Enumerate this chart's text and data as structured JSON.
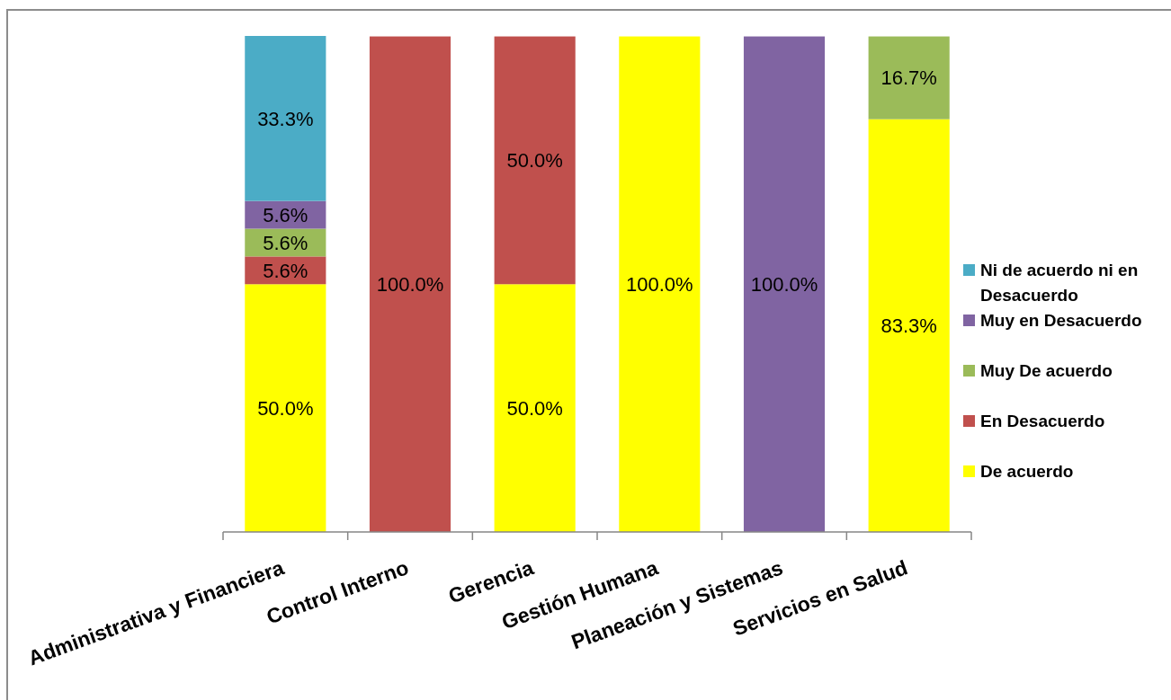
{
  "chart_data": {
    "type": "bar",
    "stacked": true,
    "categories": [
      "Administrativa y Financiera",
      "Control Interno",
      "Gerencia",
      "Gestión Humana",
      "Planeación y Sistemas",
      "Servicios en Salud"
    ],
    "series": [
      {
        "name": "De acuerdo",
        "color": "#ffff00",
        "values": [
          50,
          null,
          50,
          100,
          null,
          83.3
        ],
        "value_labels": [
          "50.0%",
          null,
          "50.0%",
          "100.0%",
          null,
          "83.3%"
        ]
      },
      {
        "name": "En Desacuerdo",
        "color": "#c0504d",
        "values": [
          5.6,
          100,
          50,
          null,
          null,
          null
        ],
        "value_labels": [
          "5.6%",
          "100.0%",
          "50.0%",
          null,
          null,
          null
        ]
      },
      {
        "name": "Muy De acuerdo",
        "color": "#9bbb59",
        "values": [
          5.6,
          null,
          null,
          null,
          null,
          16.7
        ],
        "value_labels": [
          "5.6%",
          null,
          null,
          null,
          null,
          "16.7%"
        ]
      },
      {
        "name": "Muy en Desacuerdo",
        "color": "#8064a2",
        "values": [
          5.6,
          null,
          null,
          null,
          100,
          null
        ],
        "value_labels": [
          "5.6%",
          null,
          null,
          null,
          "100.0%",
          null
        ]
      },
      {
        "name": "Ni de acuerdo ni en Desacuerdo",
        "color": "#4bacc6",
        "values": [
          33.3,
          null,
          null,
          null,
          null,
          null
        ],
        "value_labels": [
          "33.3%",
          null,
          null,
          null,
          null,
          null
        ]
      }
    ],
    "legend": "right",
    "tick_labels": "x"
  }
}
